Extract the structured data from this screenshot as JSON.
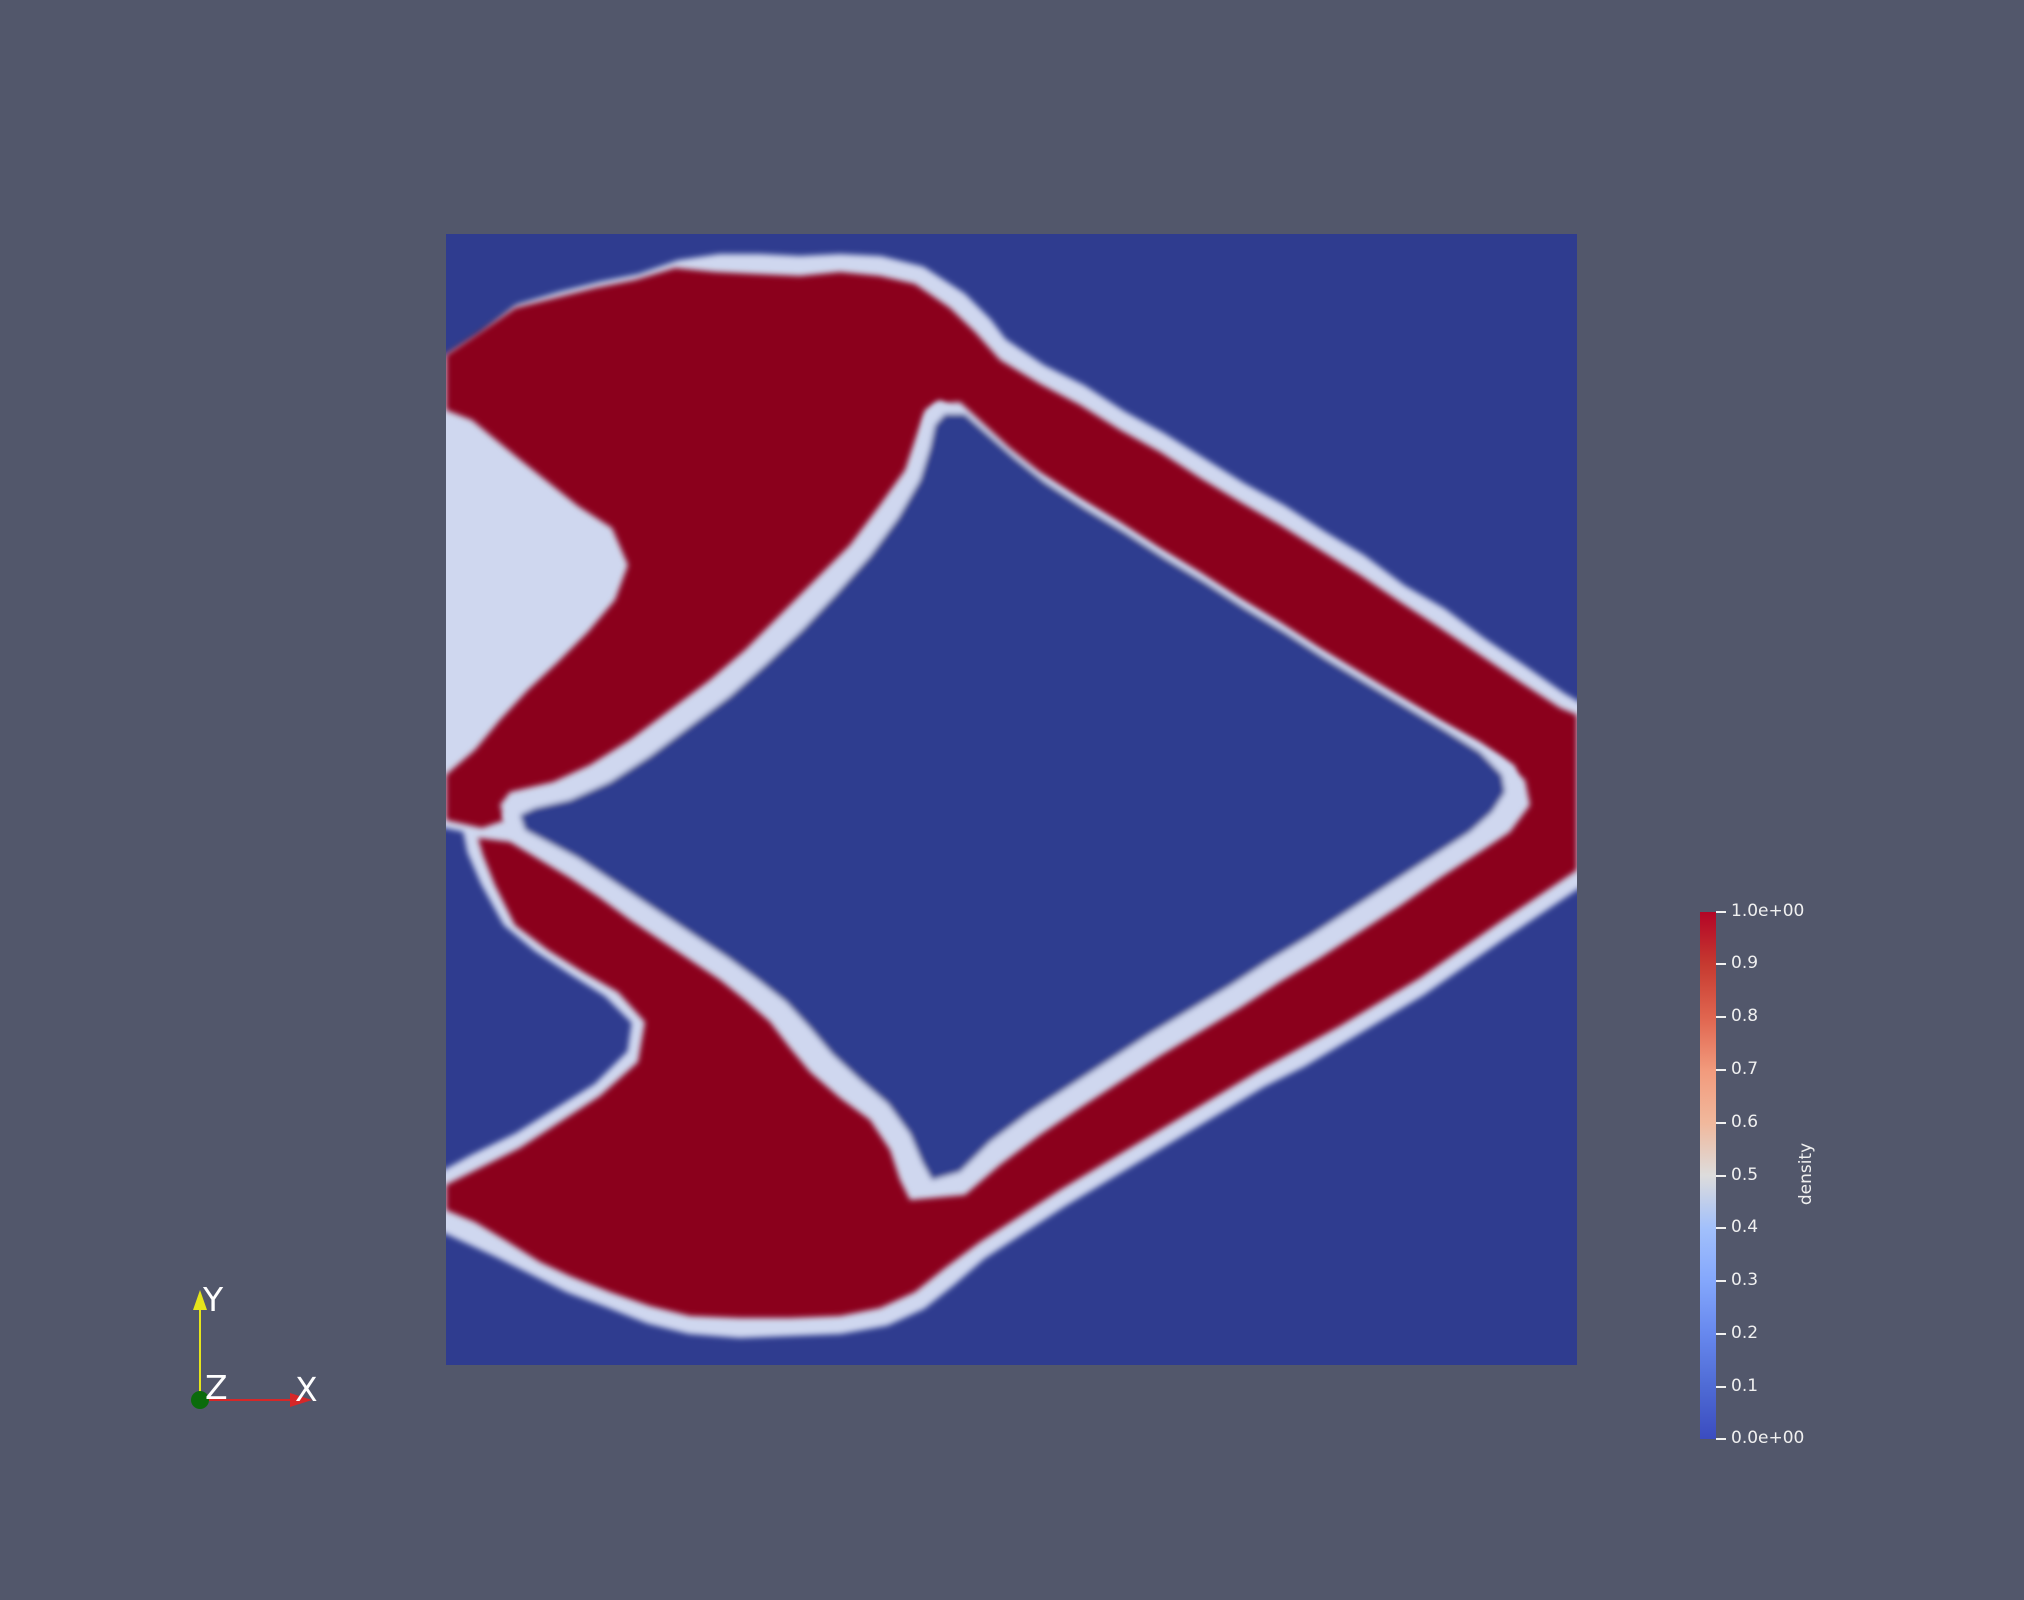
{
  "colorbar": {
    "title": "density",
    "labels": [
      "1.0e+00",
      "0.9",
      "0.8",
      "0.7",
      "0.6",
      "0.5",
      "0.4",
      "0.3",
      "0.2",
      "0.1",
      "0.0e+00"
    ],
    "min_color": "#3b4cc0",
    "max_color": "#b40426"
  },
  "orientation_axes": {
    "x_label": "X",
    "y_label": "Y",
    "z_label": "Z",
    "x_color": "#d62728",
    "y_color": "#e5e51a",
    "z_color": "#0b6b0b"
  },
  "scene": {
    "background_color": "#52576b",
    "void_color": "#2f3c8f",
    "solid_color": "#8b001c"
  }
}
